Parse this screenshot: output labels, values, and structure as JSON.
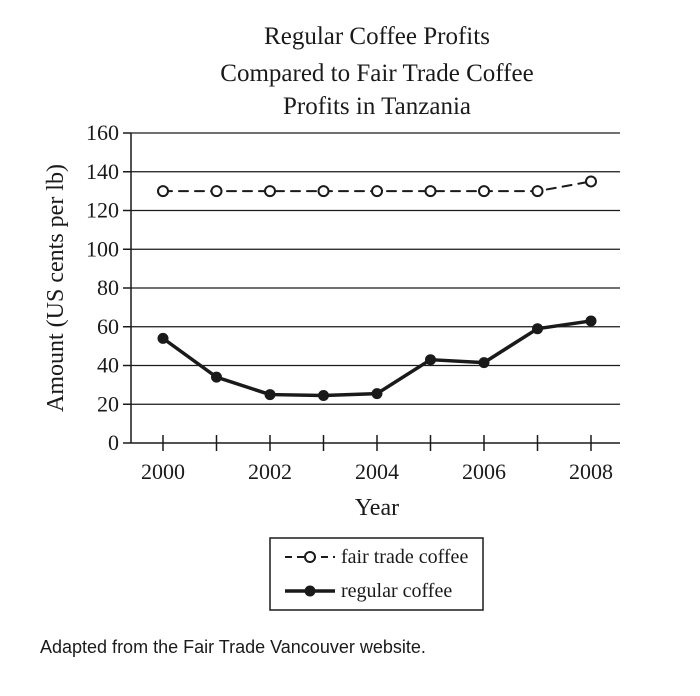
{
  "chart_data": {
    "type": "line",
    "title_lines": [
      "Regular Coffee Profits",
      "Compared to Fair Trade Coffee",
      "Profits in Tanzania"
    ],
    "xlabel": "Year",
    "ylabel": "Amount (US cents per lb)",
    "x": [
      2000,
      2001,
      2002,
      2003,
      2004,
      2005,
      2006,
      2007,
      2008
    ],
    "x_tick_labels": [
      "2000",
      "2002",
      "2004",
      "2006",
      "2008"
    ],
    "y_tick_labels": [
      "0",
      "20",
      "40",
      "60",
      "80",
      "100",
      "120",
      "140",
      "160"
    ],
    "xlim": [
      2000,
      2008
    ],
    "ylim": [
      0,
      160
    ],
    "grid": "horizontal",
    "legend_position": "bottom",
    "series": [
      {
        "name": "fair trade coffee",
        "style": "dashed-open-circle",
        "color": "#1a1a1a",
        "values": [
          130,
          130,
          130,
          130,
          130,
          130,
          130,
          130,
          135
        ]
      },
      {
        "name": "regular coffee",
        "style": "solid-filled-circle",
        "color": "#1a1a1a",
        "values": [
          54,
          34,
          25,
          24.5,
          25.5,
          43,
          41.5,
          59,
          63
        ]
      }
    ]
  },
  "source_note": "Adapted from the Fair Trade Vancouver website."
}
